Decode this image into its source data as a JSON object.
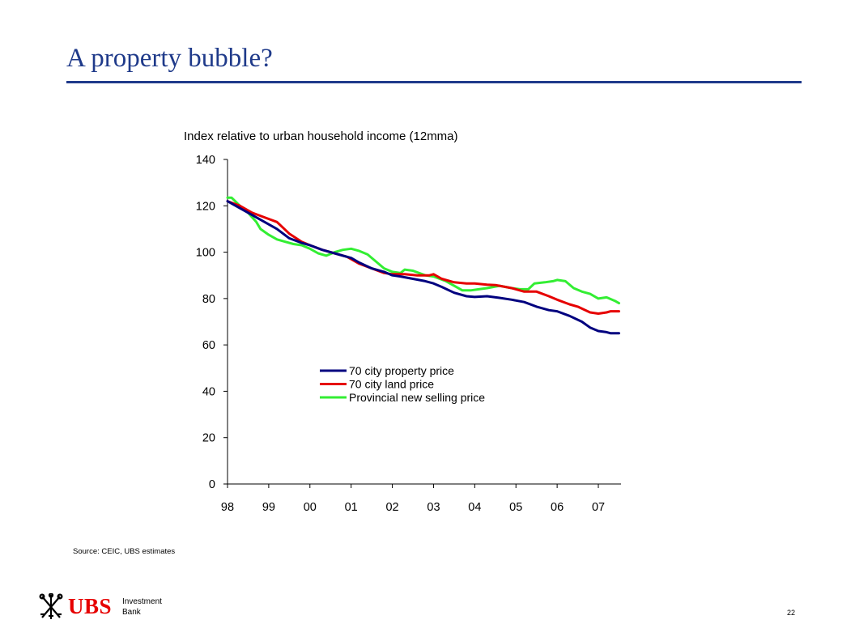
{
  "slide": {
    "title": "A property bubble?",
    "source": "Source: CEIC, UBS estimates",
    "page_number": "22",
    "logo": {
      "brand": "UBS",
      "line1": "Investment",
      "line2": "Bank"
    }
  },
  "chart_data": {
    "type": "line",
    "title": "Index relative to urban household income (12mma)",
    "xlabel": "",
    "ylabel": "",
    "x_ticks": [
      "98",
      "99",
      "00",
      "01",
      "02",
      "03",
      "04",
      "05",
      "06",
      "07"
    ],
    "x_range": [
      1998.0,
      2007.55
    ],
    "ylim": [
      0,
      140
    ],
    "y_ticks": [
      0,
      20,
      40,
      60,
      80,
      100,
      120,
      140
    ],
    "grid": false,
    "legend_position": "center",
    "series": [
      {
        "name": "70 city property price",
        "color": "#00007f",
        "points": [
          [
            1998.0,
            122
          ],
          [
            1998.3,
            119
          ],
          [
            1998.6,
            116
          ],
          [
            1998.9,
            113
          ],
          [
            1999.2,
            110
          ],
          [
            1999.5,
            106
          ],
          [
            1999.8,
            104
          ],
          [
            2000.0,
            103
          ],
          [
            2000.3,
            101
          ],
          [
            2000.6,
            99.5
          ],
          [
            2000.9,
            98
          ],
          [
            2001.0,
            97.5
          ],
          [
            2001.2,
            95.5
          ],
          [
            2001.5,
            93
          ],
          [
            2001.8,
            91.5
          ],
          [
            2002.0,
            90
          ],
          [
            2002.2,
            89.5
          ],
          [
            2002.5,
            88.5
          ],
          [
            2002.8,
            87.5
          ],
          [
            2003.0,
            86.5
          ],
          [
            2003.2,
            85
          ],
          [
            2003.5,
            82.5
          ],
          [
            2003.8,
            81
          ],
          [
            2004.0,
            80.7
          ],
          [
            2004.3,
            81
          ],
          [
            2004.6,
            80.3
          ],
          [
            2004.9,
            79.5
          ],
          [
            2005.2,
            78.5
          ],
          [
            2005.5,
            76.5
          ],
          [
            2005.8,
            75
          ],
          [
            2006.0,
            74.5
          ],
          [
            2006.3,
            72.5
          ],
          [
            2006.6,
            70
          ],
          [
            2006.8,
            67.5
          ],
          [
            2007.0,
            66
          ],
          [
            2007.2,
            65.5
          ],
          [
            2007.3,
            65
          ],
          [
            2007.5,
            65
          ]
        ]
      },
      {
        "name": "70 city land price",
        "color": "#e60000",
        "points": [
          [
            1998.0,
            122
          ],
          [
            1998.3,
            120
          ],
          [
            1998.6,
            117
          ],
          [
            1998.9,
            115
          ],
          [
            1999.2,
            113
          ],
          [
            1999.5,
            108
          ],
          [
            1999.8,
            104.5
          ],
          [
            2000.0,
            103
          ],
          [
            2000.3,
            101
          ],
          [
            2000.6,
            99.5
          ],
          [
            2000.9,
            98
          ],
          [
            2001.0,
            97
          ],
          [
            2001.2,
            95
          ],
          [
            2001.5,
            93
          ],
          [
            2001.8,
            91
          ],
          [
            2002.0,
            90.5
          ],
          [
            2002.3,
            90.5
          ],
          [
            2002.6,
            90
          ],
          [
            2002.9,
            90
          ],
          [
            2003.0,
            90.5
          ],
          [
            2003.2,
            88.5
          ],
          [
            2003.5,
            87
          ],
          [
            2003.8,
            86.5
          ],
          [
            2004.0,
            86.5
          ],
          [
            2004.3,
            86
          ],
          [
            2004.5,
            85.8
          ],
          [
            2004.6,
            85.5
          ],
          [
            2004.9,
            84.5
          ],
          [
            2005.2,
            83
          ],
          [
            2005.5,
            83
          ],
          [
            2005.8,
            81
          ],
          [
            2006.0,
            79.5
          ],
          [
            2006.3,
            77.5
          ],
          [
            2006.5,
            76.5
          ],
          [
            2006.8,
            74
          ],
          [
            2007.0,
            73.5
          ],
          [
            2007.2,
            74
          ],
          [
            2007.3,
            74.5
          ],
          [
            2007.5,
            74.5
          ]
        ]
      },
      {
        "name": "Provincial new selling price",
        "color": "#33ee33",
        "points": [
          [
            1998.0,
            123.5
          ],
          [
            1998.1,
            123.5
          ],
          [
            1998.3,
            120
          ],
          [
            1998.5,
            117
          ],
          [
            1998.7,
            113
          ],
          [
            1998.8,
            110
          ],
          [
            1999.0,
            107.5
          ],
          [
            1999.2,
            105.5
          ],
          [
            1999.4,
            104.5
          ],
          [
            1999.6,
            103.5
          ],
          [
            1999.8,
            103
          ],
          [
            2000.0,
            101.5
          ],
          [
            2000.2,
            99.5
          ],
          [
            2000.4,
            98.5
          ],
          [
            2000.6,
            100
          ],
          [
            2000.8,
            101
          ],
          [
            2001.0,
            101.5
          ],
          [
            2001.2,
            100.5
          ],
          [
            2001.4,
            99
          ],
          [
            2001.6,
            96
          ],
          [
            2001.8,
            93
          ],
          [
            2002.0,
            91.5
          ],
          [
            2002.2,
            91
          ],
          [
            2002.3,
            92.5
          ],
          [
            2002.5,
            92
          ],
          [
            2002.8,
            90
          ],
          [
            2003.0,
            89.5
          ],
          [
            2003.3,
            87.5
          ],
          [
            2003.5,
            85.5
          ],
          [
            2003.7,
            83.5
          ],
          [
            2003.9,
            83.5
          ],
          [
            2004.1,
            84
          ],
          [
            2004.3,
            84.5
          ],
          [
            2004.6,
            85.5
          ],
          [
            2004.9,
            84.5
          ],
          [
            2005.1,
            84
          ],
          [
            2005.3,
            84
          ],
          [
            2005.45,
            86.5
          ],
          [
            2005.7,
            87
          ],
          [
            2005.9,
            87.5
          ],
          [
            2006.0,
            88
          ],
          [
            2006.2,
            87.5
          ],
          [
            2006.4,
            84.5
          ],
          [
            2006.6,
            83
          ],
          [
            2006.8,
            82
          ],
          [
            2007.0,
            80
          ],
          [
            2007.2,
            80.5
          ],
          [
            2007.4,
            79
          ],
          [
            2007.5,
            78
          ]
        ]
      }
    ]
  }
}
